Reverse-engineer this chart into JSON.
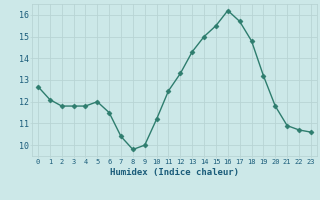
{
  "x": [
    0,
    1,
    2,
    3,
    4,
    5,
    6,
    7,
    8,
    9,
    10,
    11,
    12,
    13,
    14,
    15,
    16,
    17,
    18,
    19,
    20,
    21,
    22,
    23
  ],
  "y": [
    12.7,
    12.1,
    11.8,
    11.8,
    11.8,
    12.0,
    11.5,
    10.4,
    9.8,
    10.0,
    11.2,
    12.5,
    13.3,
    14.3,
    15.0,
    15.5,
    16.2,
    15.7,
    14.8,
    13.2,
    11.8,
    10.9,
    10.7,
    10.6
  ],
  "xlabel": "Humidex (Indice chaleur)",
  "ylim": [
    9.5,
    16.5
  ],
  "xlim": [
    -0.5,
    23.5
  ],
  "yticks": [
    10,
    11,
    12,
    13,
    14,
    15,
    16
  ],
  "xticks": [
    0,
    1,
    2,
    3,
    4,
    5,
    6,
    7,
    8,
    9,
    10,
    11,
    12,
    13,
    14,
    15,
    16,
    17,
    18,
    19,
    20,
    21,
    22,
    23
  ],
  "line_color": "#2e7d6e",
  "bg_color": "#cce8e8",
  "grid_color": "#b8d4d4",
  "tick_label_color": "#1a5c7a",
  "xlabel_color": "#1a5c7a",
  "marker": "D",
  "markersize": 2.5,
  "linewidth": 1.0
}
